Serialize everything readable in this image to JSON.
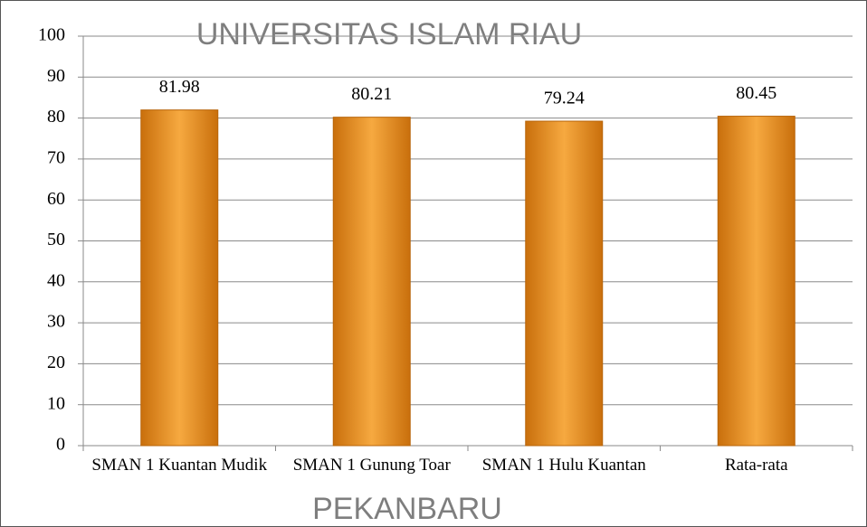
{
  "chart_data": {
    "type": "bar",
    "categories": [
      "SMAN 1 Kuantan Mudik",
      "SMAN 1 Gunung Toar",
      "SMAN 1 Hulu Kuantan",
      "Rata-rata"
    ],
    "values": [
      81.98,
      80.21,
      79.24,
      80.45
    ],
    "color": "#e8901f",
    "ylim": [
      0,
      100
    ],
    "yticks": [
      0,
      10,
      20,
      30,
      40,
      50,
      60,
      70,
      80,
      90,
      100
    ],
    "grid": true,
    "watermark": [
      "UNIVERSITAS ISLAM RIAU",
      "PEKANBARU"
    ]
  }
}
